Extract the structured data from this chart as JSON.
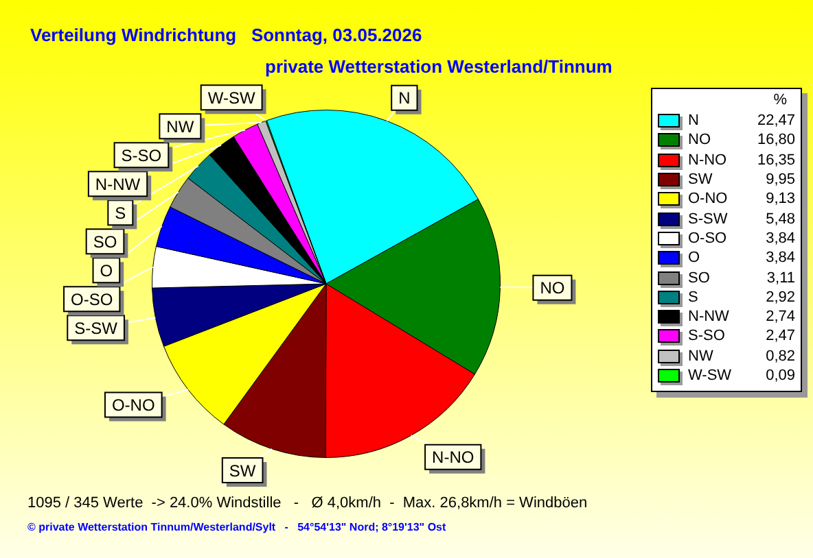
{
  "chart_data": {
    "type": "pie",
    "title": "Verteilung Windrichtung   Sonntag, 03.05.2026",
    "subtitle": "private Wetterstation Westerland/Tinnum",
    "legend_title": "%",
    "legend": "right",
    "value_labels": [
      "22,47",
      "16,80",
      "16,35",
      "9,95",
      "9,13",
      "5,48",
      "3,84",
      "3,84",
      "3,11",
      "2,92",
      "2,74",
      "2,47",
      "0,82",
      "0,09"
    ],
    "categories": [
      "N",
      "NO",
      "N-NO",
      "SW",
      "O-NO",
      "S-SW",
      "O-SO",
      "O",
      "SO",
      "S",
      "N-NW",
      "S-SO",
      "NW",
      "W-SW"
    ],
    "values": [
      22.47,
      16.8,
      16.35,
      9.95,
      9.13,
      5.48,
      3.84,
      3.84,
      3.11,
      2.92,
      2.74,
      2.47,
      0.82,
      0.09
    ],
    "colors": [
      "#00ffff",
      "#008000",
      "#ff0000",
      "#800000",
      "#ffff00",
      "#000080",
      "#ffffff",
      "#0000ff",
      "#808080",
      "#008080",
      "#000000",
      "#ff00ff",
      "#c0c0c0",
      "#00ff00"
    ],
    "annotations": [
      "1095 / 345 Werte  -> 24.0% Windstille   -   Ø 4,0km/h  -  Max. 26,8km/h = Windböen",
      "© private Wetterstation Tinnum/Westerland/Sylt   -   54°54'13\" Nord; 8°19'13\" Ost"
    ]
  }
}
